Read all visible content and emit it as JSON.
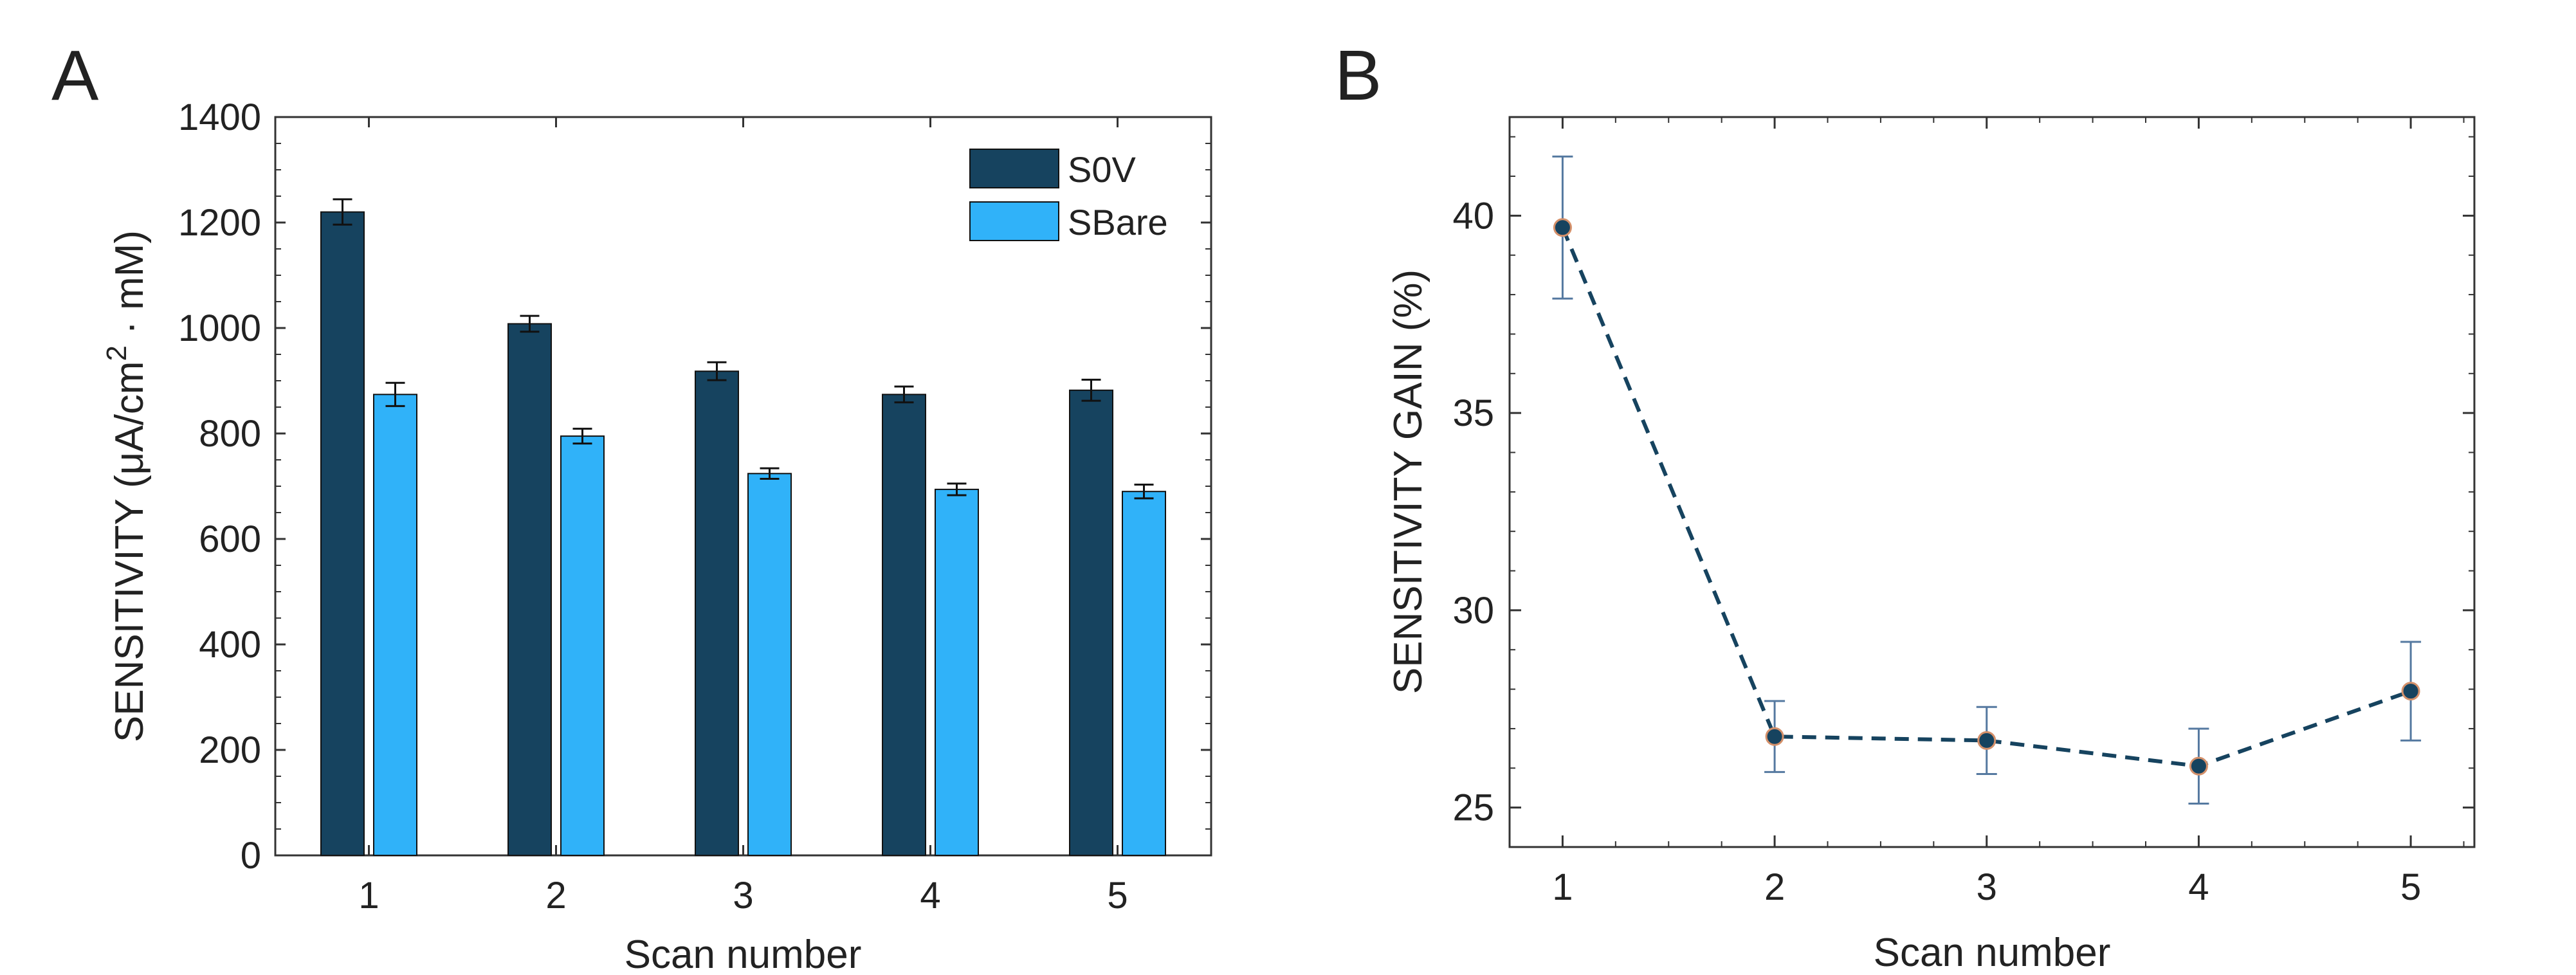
{
  "panels": {
    "a": {
      "letter": "A"
    },
    "b": {
      "letter": "B"
    }
  },
  "colors": {
    "s0v": "#16435f",
    "sbare": "#30b2f9",
    "line": "#16435f",
    "marker_fill": "#16435f",
    "marker_edge": "#d4906a",
    "errorbar_b": "#5579a0",
    "axes": "#333333"
  },
  "chart_data": [
    {
      "type": "bar",
      "panel": "A",
      "categories": [
        "1",
        "2",
        "3",
        "4",
        "5"
      ],
      "series": [
        {
          "name": "S0V",
          "values": [
            1220,
            1008,
            918,
            874,
            882
          ],
          "errors": [
            24,
            15,
            17,
            15,
            20
          ]
        },
        {
          "name": "SBare",
          "values": [
            874,
            795,
            724,
            694,
            690
          ],
          "errors": [
            22,
            14,
            10,
            11,
            13
          ]
        }
      ],
      "xlabel": "Scan number",
      "ylabel_parts": [
        "SENSITIVITY (μA/cm",
        "2",
        " · mM)"
      ],
      "ylim": [
        0,
        1400
      ],
      "yticks": [
        0,
        200,
        400,
        600,
        800,
        1000,
        1200,
        1400
      ],
      "grid": false,
      "legend_position": "top-right"
    },
    {
      "type": "line",
      "panel": "B",
      "x": [
        1,
        2,
        3,
        4,
        5
      ],
      "y": [
        39.7,
        26.8,
        26.7,
        26.05,
        27.95
      ],
      "errors": [
        1.8,
        0.9,
        0.85,
        0.95,
        1.25
      ],
      "xlabel": "Scan number",
      "ylabel": "SENSITIVITY GAIN (%)",
      "xlim": [
        0.75,
        5.3
      ],
      "ylim": [
        24,
        42.5
      ],
      "xticks": [
        1,
        2,
        3,
        4,
        5
      ],
      "yticks": [
        25,
        30,
        35,
        40
      ],
      "line_style": "dashed",
      "grid": false
    }
  ]
}
